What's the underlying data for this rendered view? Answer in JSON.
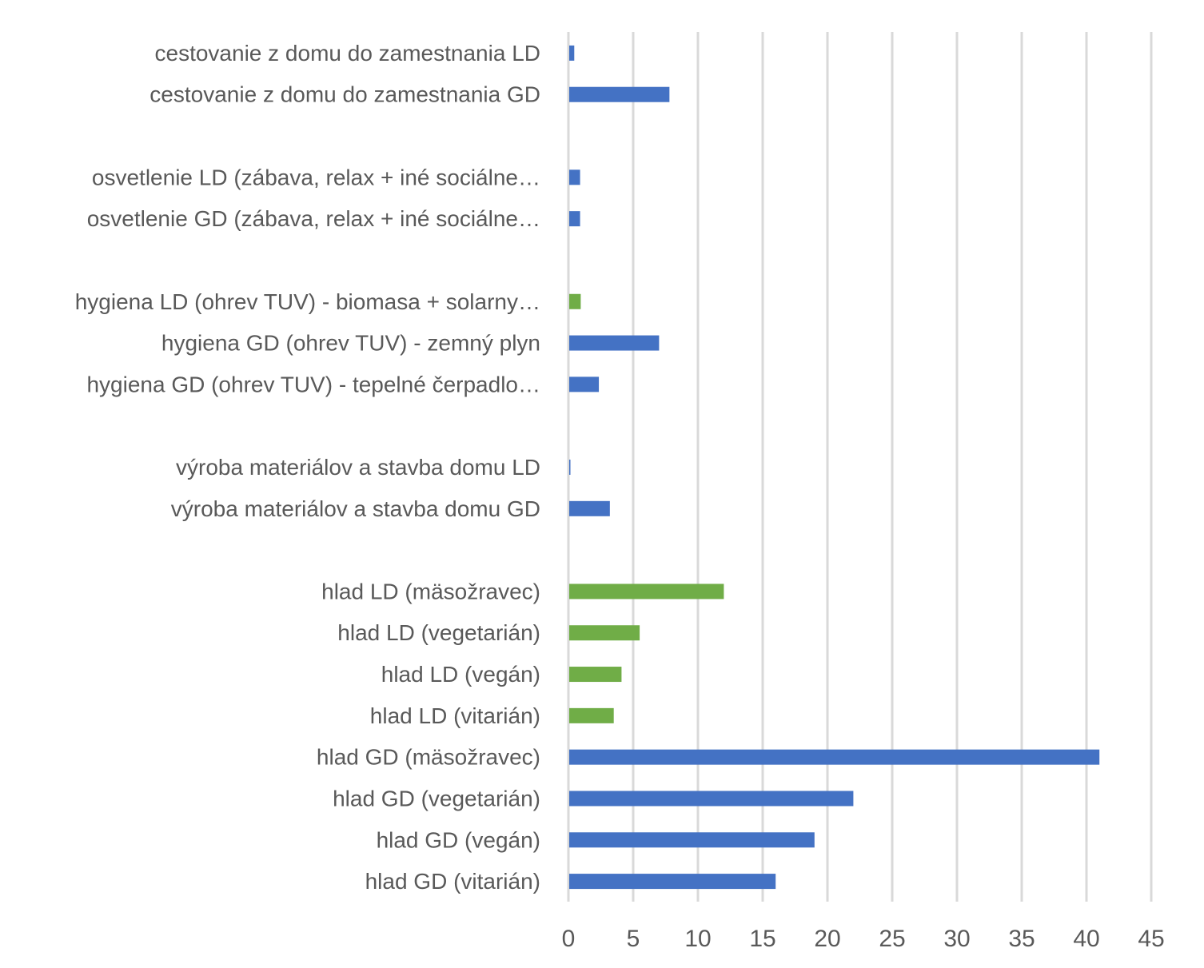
{
  "chart_data": {
    "type": "bar",
    "orientation": "horizontal",
    "title": "",
    "xlabel": "",
    "ylabel": "",
    "xlim": [
      0,
      45
    ],
    "xticks": [
      0,
      5,
      10,
      15,
      20,
      25,
      30,
      35,
      40,
      45
    ],
    "grid": true,
    "colors": {
      "GD": "#4472C4",
      "LD": "#70AD47"
    },
    "categories": [
      "cestovanie z domu do zamestnania LD",
      "cestovanie z domu do zamestnania GD",
      "",
      "osvetlenie LD (zábava, relax + iné sociálne…",
      "osvetlenie GD (zábava, relax + iné sociálne…",
      "",
      "hygiena LD (ohrev TUV) - biomasa + solarny…",
      "hygiena GD (ohrev TUV) - zemný plyn",
      "hygiena GD (ohrev TUV) - tepelné čerpadlo…",
      "",
      "výroba materiálov a stavba domu LD",
      "výroba materiálov a stavba domu GD",
      "",
      "hlad LD (mäsožravec)",
      "hlad LD (vegetarián)",
      "hlad LD (vegán)",
      "hlad LD (vitarián)",
      "hlad GD (mäsožravec)",
      "hlad GD (vegetarián)",
      "hlad GD (vegán)",
      "hlad GD (vitarián)"
    ],
    "values": [
      0.45,
      7.8,
      null,
      0.9,
      0.9,
      null,
      0.95,
      7.0,
      2.35,
      null,
      0.1,
      3.2,
      null,
      12,
      5.5,
      4.1,
      3.5,
      41,
      22,
      19,
      16
    ],
    "bar_colors": [
      "#4472C4",
      "#4472C4",
      null,
      "#4472C4",
      "#4472C4",
      null,
      "#70AD47",
      "#4472C4",
      "#4472C4",
      null,
      "#4472C4",
      "#4472C4",
      null,
      "#70AD47",
      "#70AD47",
      "#70AD47",
      "#70AD47",
      "#4472C4",
      "#4472C4",
      "#4472C4",
      "#4472C4"
    ]
  }
}
